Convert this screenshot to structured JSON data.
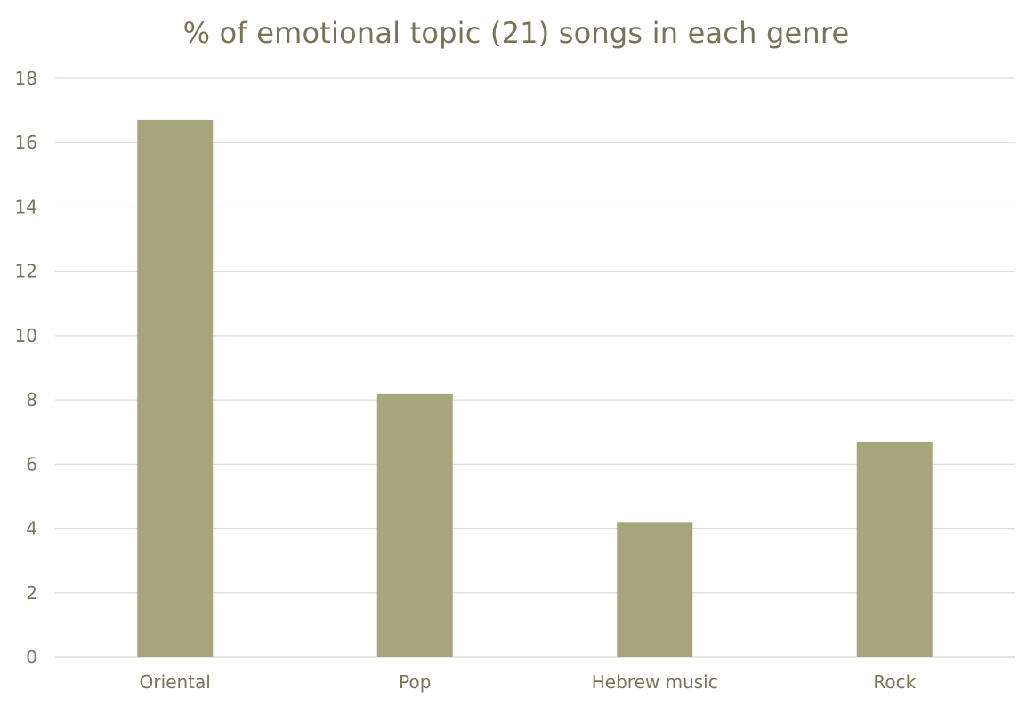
{
  "chart_data": {
    "type": "bar",
    "title": "% of emotional topic (21) songs in each genre",
    "xlabel": "",
    "ylabel": "",
    "categories": [
      "Oriental",
      "Pop",
      "Hebrew music",
      "Rock"
    ],
    "values": [
      16.7,
      8.2,
      4.2,
      6.7
    ],
    "ylim": [
      0,
      18
    ],
    "yticks": [
      0,
      2,
      4,
      6,
      8,
      10,
      12,
      14,
      16,
      18
    ],
    "grid": true,
    "legend": "none",
    "colors": {
      "bar": "#A8A47C",
      "gridline": "#DEDDD0",
      "text": "#7A7358"
    }
  }
}
